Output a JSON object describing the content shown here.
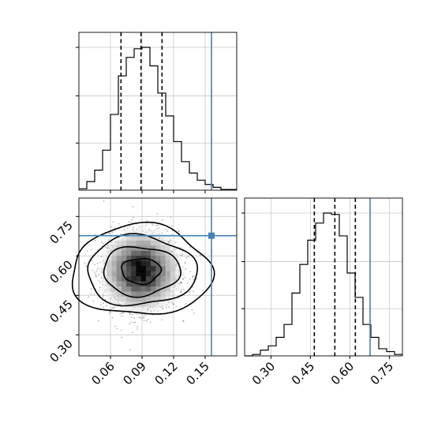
{
  "chart_data": {
    "type": "corner",
    "parameters": [
      {
        "xlim": [
          0.03,
          0.18
        ],
        "ticks": [
          0.06,
          0.09,
          0.12,
          0.15
        ],
        "tick_labels": [
          "0.06",
          "0.09",
          "0.12",
          "0.15"
        ],
        "quantiles": [
          0.07,
          0.089,
          0.109
        ],
        "truth": 0.156,
        "hist_bins": [
          0.03,
          0.0375,
          0.045,
          0.0525,
          0.06,
          0.0675,
          0.075,
          0.0825,
          0.09,
          0.0975,
          0.105,
          0.1125,
          0.12,
          0.1275,
          0.135,
          0.1425,
          0.15,
          0.1575,
          0.165,
          0.1725,
          0.18
        ],
        "hist_counts": [
          0.01,
          0.06,
          0.14,
          0.28,
          0.53,
          0.8,
          0.93,
          0.99,
          1.0,
          0.87,
          0.68,
          0.52,
          0.34,
          0.2,
          0.12,
          0.07,
          0.04,
          0.02,
          0.005,
          0.005
        ]
      },
      {
        "xlim": [
          0.2,
          0.8
        ],
        "ticks": [
          0.3,
          0.45,
          0.6,
          0.75
        ],
        "tick_labels": [
          "0.30",
          "0.45",
          "0.60",
          "0.75"
        ],
        "quantiles": [
          0.465,
          0.543,
          0.621
        ],
        "truth": 0.677,
        "hist_bins": [
          0.2,
          0.23,
          0.26,
          0.29,
          0.32,
          0.35,
          0.38,
          0.41,
          0.44,
          0.47,
          0.5,
          0.53,
          0.56,
          0.59,
          0.62,
          0.65,
          0.68,
          0.71,
          0.74,
          0.77,
          0.8
        ],
        "hist_counts": [
          0.0,
          0.01,
          0.04,
          0.07,
          0.13,
          0.22,
          0.44,
          0.64,
          0.81,
          0.93,
          1.0,
          0.99,
          0.84,
          0.58,
          0.41,
          0.22,
          0.13,
          0.05,
          0.03,
          0.01
        ]
      }
    ],
    "joint": {
      "xlim": [
        0.03,
        0.18
      ],
      "ylim": [
        0.22,
        0.82
      ],
      "xticks": [
        0.06,
        0.09,
        0.12,
        0.15
      ],
      "xtick_labels": [
        "0.06",
        "0.09",
        "0.12",
        "0.15"
      ],
      "yticks": [
        0.3,
        0.45,
        0.6,
        0.75
      ],
      "ytick_labels": [
        "0.30",
        "0.45",
        "0.60",
        "0.75"
      ],
      "truth_point": [
        0.156,
        0.677
      ],
      "center": [
        0.089,
        0.543
      ],
      "sd": [
        0.017,
        0.071
      ],
      "contour_levels_sigma": [
        0.5,
        1.0,
        1.5,
        2.0
      ],
      "contour_radii_x": [
        0.0185,
        0.0365,
        0.052,
        0.0665
      ],
      "contour_radii_y": [
        0.048,
        0.093,
        0.132,
        0.172
      ]
    },
    "grid": true,
    "truth_color": "#4682b4"
  }
}
